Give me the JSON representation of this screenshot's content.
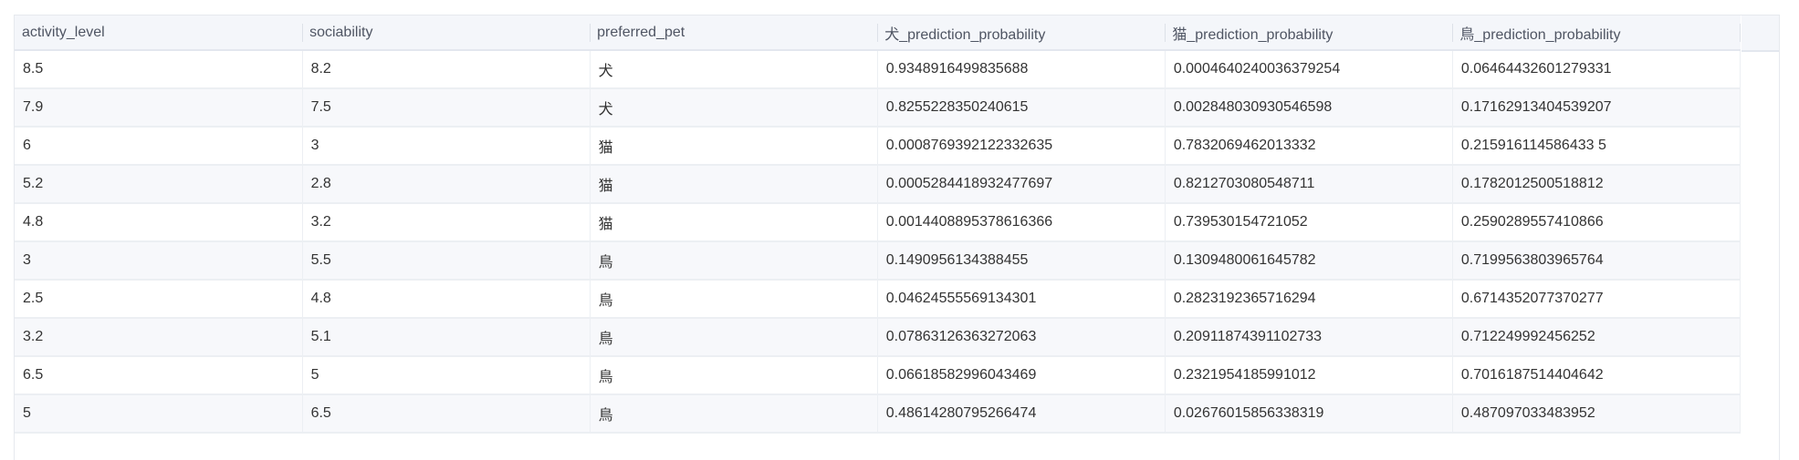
{
  "table": {
    "columns": [
      "activity_level",
      "sociability",
      "preferred_pet",
      "犬_prediction_probability",
      "猫_prediction_probability",
      "鳥_prediction_probability"
    ],
    "rows": [
      [
        "8.5",
        "8.2",
        "犬",
        "0.9348916499835688",
        "0.0004640240036379254",
        "0.06464432601279331"
      ],
      [
        "7.9",
        "7.5",
        "犬",
        "0.8255228350240615",
        "0.002848030930546598",
        "0.17162913404539207"
      ],
      [
        "6",
        "3",
        "猫",
        "0.0008769392122332635",
        "0.7832069462013332",
        "0.215916114586433 5"
      ],
      [
        "5.2",
        "2.8",
        "猫",
        "0.0005284418932477697",
        "0.8212703080548711",
        "0.1782012500518812"
      ],
      [
        "4.8",
        "3.2",
        "猫",
        "0.0014408895378616366",
        "0.739530154721052",
        "0.2590289557410866"
      ],
      [
        "3",
        "5.5",
        "鳥",
        "0.1490956134388455",
        "0.1309480061645782",
        "0.7199563803965764"
      ],
      [
        "2.5",
        "4.8",
        "鳥",
        "0.04624555569134301",
        "0.2823192365716294",
        "0.6714352077370277"
      ],
      [
        "3.2",
        "5.1",
        "鳥",
        "0.07863126363272063",
        "0.20911874391102733",
        "0.712249992456252"
      ],
      [
        "6.5",
        "5",
        "鳥",
        "0.06618582996043469",
        "0.2321954185991012",
        "0.7016187514404642"
      ],
      [
        "5",
        "6.5",
        "鳥",
        "0.48614280795266474",
        "0.02676015856338319",
        "0.487097033483952"
      ]
    ]
  }
}
